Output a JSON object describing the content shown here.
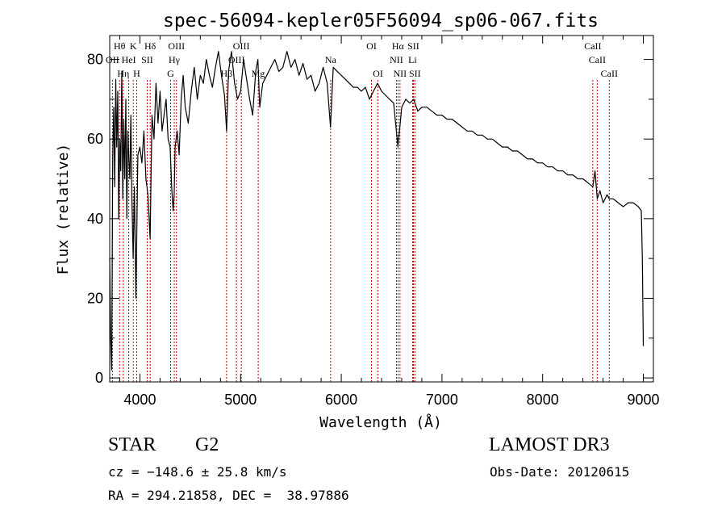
{
  "chart_data": {
    "type": "line",
    "title": "spec-56094-kepler05F56094_sp06-067.fits",
    "xlabel": "Wavelength (Å)",
    "ylabel": "Flux (relative)",
    "xlim": [
      3700,
      9100
    ],
    "ylim": [
      -1,
      86
    ],
    "x_ticks": [
      {
        "value": 4000,
        "label": "4000"
      },
      {
        "value": 5000,
        "label": "5000"
      },
      {
        "value": 6000,
        "label": "6000"
      },
      {
        "value": 7000,
        "label": "7000"
      },
      {
        "value": 8000,
        "label": "8000"
      },
      {
        "value": 9000,
        "label": "9000"
      }
    ],
    "y_ticks": [
      {
        "value": 0,
        "label": "0"
      },
      {
        "value": 20,
        "label": "20"
      },
      {
        "value": 40,
        "label": "40"
      },
      {
        "value": 60,
        "label": "60"
      },
      {
        "value": 80,
        "label": "80"
      }
    ],
    "series": [
      {
        "name": "spectrum",
        "x": [
          3700,
          3710,
          3720,
          3730,
          3740,
          3750,
          3760,
          3770,
          3780,
          3790,
          3800,
          3810,
          3820,
          3830,
          3840,
          3850,
          3860,
          3870,
          3880,
          3890,
          3900,
          3910,
          3920,
          3933,
          3945,
          3960,
          3968,
          3980,
          4000,
          4020,
          4040,
          4060,
          4080,
          4101,
          4120,
          4140,
          4160,
          4180,
          4200,
          4220,
          4240,
          4260,
          4280,
          4300,
          4315,
          4330,
          4340,
          4350,
          4370,
          4390,
          4410,
          4430,
          4450,
          4480,
          4510,
          4540,
          4570,
          4600,
          4630,
          4660,
          4690,
          4720,
          4750,
          4780,
          4810,
          4840,
          4861,
          4880,
          4910,
          4940,
          4970,
          5000,
          5030,
          5060,
          5090,
          5120,
          5150,
          5172,
          5190,
          5220,
          5260,
          5300,
          5340,
          5380,
          5420,
          5460,
          5500,
          5540,
          5580,
          5620,
          5660,
          5700,
          5740,
          5780,
          5820,
          5860,
          5893,
          5920,
          5960,
          6000,
          6040,
          6080,
          6120,
          6160,
          6200,
          6240,
          6280,
          6320,
          6360,
          6400,
          6440,
          6480,
          6520,
          6563,
          6600,
          6640,
          6680,
          6720,
          6760,
          6800,
          6850,
          6900,
          6950,
          7000,
          7050,
          7100,
          7150,
          7200,
          7250,
          7300,
          7350,
          7400,
          7450,
          7500,
          7550,
          7600,
          7650,
          7700,
          7750,
          7800,
          7850,
          7900,
          7950,
          8000,
          8050,
          8100,
          8150,
          8200,
          8250,
          8300,
          8350,
          8400,
          8450,
          8498,
          8520,
          8542,
          8570,
          8600,
          8640,
          8662,
          8700,
          8750,
          8800,
          8850,
          8900,
          8950,
          8980,
          8990,
          9000
        ],
        "values": [
          30,
          10,
          2,
          55,
          68,
          48,
          75,
          58,
          72,
          40,
          60,
          52,
          77,
          45,
          65,
          50,
          70,
          40,
          62,
          55,
          50,
          66,
          45,
          30,
          48,
          20,
          35,
          56,
          58,
          54,
          62,
          50,
          46,
          35,
          66,
          60,
          74,
          64,
          72,
          62,
          66,
          70,
          60,
          58,
          48,
          42,
          46,
          58,
          62,
          56,
          70,
          76,
          68,
          64,
          72,
          78,
          70,
          76,
          74,
          80,
          76,
          73,
          78,
          82,
          76,
          71,
          62,
          77,
          82,
          74,
          70,
          72,
          80,
          75,
          70,
          66,
          77,
          80,
          68,
          74,
          76,
          78,
          80,
          77,
          78,
          82,
          78,
          80,
          76,
          79,
          75,
          76,
          72,
          74,
          78,
          74,
          63,
          78,
          77,
          76,
          75,
          74,
          73,
          73,
          72,
          73,
          70,
          72,
          74,
          72,
          71,
          70,
          69,
          58,
          68,
          70,
          69,
          70,
          67,
          68,
          68,
          67,
          66,
          66,
          65,
          65,
          64,
          63,
          62,
          62,
          61,
          61,
          60,
          60,
          59,
          58,
          58,
          57,
          57,
          56,
          55,
          55,
          54,
          54,
          53,
          53,
          52,
          52,
          51,
          51,
          50,
          50,
          49,
          48,
          52,
          45,
          47,
          44,
          46,
          45,
          45,
          44,
          43,
          44,
          44,
          43,
          42,
          30,
          8
        ]
      }
    ],
    "lines": [
      {
        "name": "OII",
        "wavelength": 3727,
        "tier": 1
      },
      {
        "name": "Hθ",
        "wavelength": 3798,
        "tier": 0
      },
      {
        "name": "Hη",
        "wavelength": 3835,
        "tier": 2
      },
      {
        "name": "HeI",
        "wavelength": 3889,
        "tier": 1
      },
      {
        "name": "K",
        "wavelength": 3934,
        "tier": 0
      },
      {
        "name": "H",
        "wavelength": 3968,
        "tier": 2
      },
      {
        "name": "SII",
        "wavelength": 4072,
        "tier": 1
      },
      {
        "name": "Hδ",
        "wavelength": 4102,
        "tier": 0
      },
      {
        "name": "G",
        "wavelength": 4305,
        "tier": 2
      },
      {
        "name": "Hγ",
        "wavelength": 4341,
        "tier": 1
      },
      {
        "name": "OIII",
        "wavelength": 4363,
        "tier": 0
      },
      {
        "name": "Hβ",
        "wavelength": 4861,
        "tier": 2
      },
      {
        "name": "OIII",
        "wavelength": 4959,
        "tier": 1
      },
      {
        "name": "OIII",
        "wavelength": 5007,
        "tier": 0
      },
      {
        "name": "Mg",
        "wavelength": 5175,
        "tier": 2
      },
      {
        "name": "Na",
        "wavelength": 5894,
        "tier": 1
      },
      {
        "name": "OI",
        "wavelength": 6300,
        "tier": 0
      },
      {
        "name": "OI",
        "wavelength": 6364,
        "tier": 2
      },
      {
        "name": "NII",
        "wavelength": 6548,
        "tier": 1
      },
      {
        "name": "Hα",
        "wavelength": 6563,
        "tier": 0
      },
      {
        "name": "NII",
        "wavelength": 6583,
        "tier": 2
      },
      {
        "name": "Li",
        "wavelength": 6708,
        "tier": 1
      },
      {
        "name": "SII",
        "wavelength": 6716,
        "tier": 0
      },
      {
        "name": "SII",
        "wavelength": 6731,
        "tier": 2
      },
      {
        "name": "CaII",
        "wavelength": 8498,
        "tier": 0
      },
      {
        "name": "CaII",
        "wavelength": 8542,
        "tier": 1
      },
      {
        "name": "CaII",
        "wavelength": 8662,
        "tier": 2
      }
    ],
    "grid": false,
    "legend": "none"
  },
  "info": {
    "object_class": "STAR",
    "subclass": "G2",
    "survey": "LAMOST DR3",
    "redshift": "cz = −148.6 ± 25.8 km/s",
    "obs_date": "Obs-Date: 20120615",
    "coords": "RA = 294.21858, DEC =  38.97886"
  },
  "colors": {
    "foreground": "#000000",
    "line_markers": "#c00000",
    "background": "#ffffff"
  }
}
